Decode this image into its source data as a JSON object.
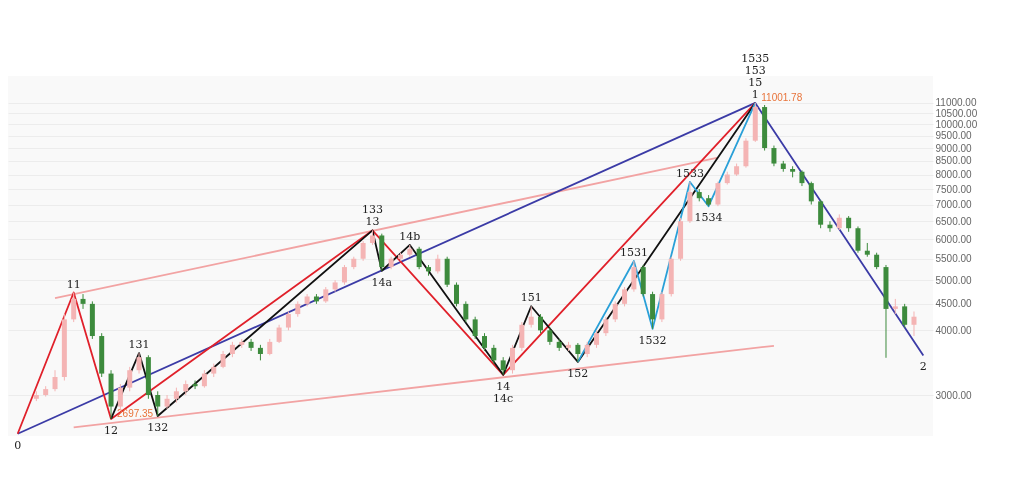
{
  "chart_data": {
    "type": "candlestick",
    "log": true,
    "grid": "y",
    "tick_labels": "y",
    "categories": [
      null,
      null,
      null,
      null,
      null,
      null,
      null,
      null,
      null,
      null,
      null,
      null,
      null,
      null,
      null,
      null,
      null,
      null,
      null,
      null,
      null,
      null,
      null,
      null,
      null,
      null,
      null,
      null,
      null,
      null,
      null,
      null,
      null,
      null,
      null,
      null,
      null,
      null,
      null,
      null,
      null,
      null,
      null,
      null,
      null,
      null,
      null,
      null,
      null,
      null,
      null,
      null,
      null,
      null,
      null,
      null,
      null,
      null,
      null,
      null,
      null,
      null,
      null,
      null,
      null,
      null,
      null,
      null,
      null,
      null,
      null,
      null,
      null,
      null,
      null,
      null,
      null,
      null,
      null,
      null,
      null,
      null,
      null,
      null,
      null,
      null,
      null,
      null,
      null,
      null,
      null,
      null,
      null,
      null,
      null,
      null,
      null,
      null
    ],
    "ylim": [
      2500,
      12400
    ],
    "yticks": [
      {
        "value": 3000,
        "label": "3000.00"
      },
      {
        "value": 4000,
        "label": "4000.00"
      },
      {
        "value": 4500,
        "label": "4500.00"
      },
      {
        "value": 5000,
        "label": "5000.00"
      },
      {
        "value": 5500,
        "label": "5500.00"
      },
      {
        "value": 6000,
        "label": "6000.00"
      },
      {
        "value": 6500,
        "label": "6500.00"
      },
      {
        "value": 7000,
        "label": "7000.00"
      },
      {
        "value": 7500,
        "label": "7500.00"
      },
      {
        "value": 8000,
        "label": "8000.00"
      },
      {
        "value": 8500,
        "label": "8500.00"
      },
      {
        "value": 9000,
        "label": "9000.00"
      },
      {
        "value": 9500,
        "label": "9500.00"
      },
      {
        "value": 10000,
        "label": "10000.00"
      },
      {
        "value": 10500,
        "label": "10500.00"
      },
      {
        "value": 11000,
        "label": "11000.00"
      }
    ],
    "series": [
      {
        "type": "line",
        "color": "#f2a3a3",
        "values": [
          null,
          null,
          null,
          null,
          4615,
          null,
          null,
          null,
          null,
          null,
          null,
          null,
          null,
          null,
          null,
          null,
          null,
          null,
          null,
          null,
          null,
          null,
          null,
          null,
          null,
          null,
          null,
          null,
          null,
          null,
          null,
          null,
          null,
          null,
          null,
          null,
          null,
          null,
          null,
          null,
          null,
          null,
          null,
          null,
          null,
          null,
          null,
          null,
          null,
          null,
          null,
          null,
          null,
          null,
          null,
          null,
          null,
          null,
          null,
          null,
          null,
          null,
          null,
          null,
          null,
          null,
          null,
          null,
          null,
          null,
          null,
          null,
          null,
          null,
          null,
          8620,
          null,
          null,
          null,
          null,
          null,
          null,
          null,
          null,
          null,
          null,
          null,
          null,
          null,
          null,
          null,
          null,
          null,
          null,
          null,
          null,
          null,
          null
        ]
      },
      {
        "type": "line",
        "color": "#f2a3a3",
        "values": [
          null,
          null,
          null,
          null,
          null,
          null,
          2599,
          null,
          null,
          null,
          null,
          null,
          null,
          null,
          null,
          null,
          null,
          null,
          null,
          null,
          null,
          null,
          null,
          null,
          null,
          null,
          null,
          null,
          null,
          null,
          null,
          null,
          null,
          null,
          null,
          null,
          null,
          null,
          null,
          null,
          null,
          null,
          null,
          null,
          null,
          null,
          null,
          null,
          null,
          null,
          null,
          null,
          null,
          null,
          null,
          null,
          null,
          null,
          null,
          null,
          null,
          null,
          null,
          null,
          null,
          null,
          null,
          null,
          null,
          null,
          null,
          null,
          null,
          null,
          null,
          null,
          null,
          null,
          null,
          null,
          null,
          3734,
          null,
          null,
          null,
          null,
          null,
          null,
          null,
          null,
          null,
          null,
          null,
          null,
          null,
          null,
          null,
          null
        ]
      },
      {
        "type": "line",
        "color": "#3b3ba6",
        "values": [
          2525,
          null,
          null,
          null,
          null,
          null,
          null,
          null,
          null,
          null,
          null,
          null,
          null,
          null,
          null,
          null,
          null,
          null,
          null,
          null,
          null,
          null,
          null,
          null,
          null,
          null,
          null,
          null,
          null,
          null,
          null,
          null,
          null,
          null,
          null,
          null,
          null,
          null,
          null,
          null,
          null,
          null,
          null,
          null,
          null,
          null,
          null,
          null,
          null,
          null,
          null,
          null,
          null,
          null,
          null,
          null,
          null,
          null,
          null,
          null,
          null,
          null,
          null,
          null,
          null,
          null,
          null,
          null,
          null,
          null,
          null,
          null,
          null,
          null,
          null,
          null,
          null,
          null,
          null,
          11001.78,
          null,
          null,
          null,
          null,
          null,
          null,
          null,
          null,
          null,
          null,
          null,
          null,
          null,
          null,
          null,
          null,
          null,
          3577
        ]
      },
      {
        "type": "line",
        "color": "#e0202a",
        "value_labels": [
          null,
          null,
          null,
          null,
          null,
          null,
          null,
          null,
          null,
          null,
          "2697.35",
          null,
          null,
          null,
          null,
          null,
          null,
          null,
          null,
          null,
          null,
          null,
          null,
          null,
          null,
          null,
          null,
          null,
          null,
          null,
          null,
          null,
          null,
          null,
          null,
          null,
          null,
          null,
          null,
          null,
          null,
          null,
          null,
          null,
          null,
          null,
          null,
          null,
          null,
          null,
          null,
          null,
          null,
          null,
          null,
          null,
          null,
          null,
          null,
          null,
          null,
          null,
          null,
          null,
          null,
          null,
          null,
          null,
          null,
          null,
          null,
          null,
          null,
          null,
          null,
          null,
          null,
          null,
          null,
          "11001.78",
          null,
          null,
          null,
          null,
          null,
          null,
          null,
          null,
          null,
          null,
          null,
          null,
          null,
          null,
          null,
          null,
          null,
          null
        ],
        "values": [
          2525,
          null,
          null,
          null,
          null,
          null,
          4733,
          null,
          null,
          null,
          2697.35,
          null,
          null,
          null,
          null,
          null,
          null,
          null,
          null,
          null,
          null,
          null,
          null,
          null,
          null,
          null,
          null,
          null,
          null,
          null,
          null,
          null,
          null,
          null,
          null,
          null,
          null,
          null,
          6240,
          null,
          null,
          null,
          null,
          null,
          null,
          null,
          null,
          null,
          null,
          null,
          null,
          null,
          3282,
          null,
          null,
          null,
          null,
          null,
          null,
          null,
          null,
          null,
          null,
          null,
          null,
          null,
          null,
          null,
          null,
          null,
          null,
          null,
          null,
          null,
          null,
          null,
          null,
          null,
          null,
          11001.78,
          null,
          null,
          null,
          null,
          null,
          null,
          null,
          null,
          null,
          null,
          null,
          null,
          null,
          null,
          null,
          null,
          null,
          null
        ]
      },
      {
        "type": "line",
        "color": "#111111",
        "values": [
          null,
          null,
          null,
          null,
          null,
          null,
          null,
          null,
          null,
          null,
          2697.35,
          null,
          null,
          3615,
          null,
          2733,
          null,
          null,
          null,
          null,
          null,
          null,
          null,
          null,
          null,
          null,
          null,
          null,
          null,
          null,
          null,
          null,
          null,
          null,
          null,
          null,
          null,
          null,
          6240,
          5214,
          null,
          null,
          5849,
          null,
          null,
          null,
          null,
          null,
          null,
          null,
          null,
          null,
          3282,
          null,
          null,
          4453,
          null,
          null,
          null,
          null,
          3476,
          null,
          null,
          null,
          null,
          null,
          null,
          null,
          null,
          null,
          null,
          null,
          null,
          null,
          null,
          null,
          null,
          null,
          null,
          11001.78,
          null,
          null,
          null,
          null,
          null,
          null,
          null,
          null,
          null,
          null,
          null,
          null,
          null,
          null,
          null,
          null,
          null,
          null
        ]
      },
      {
        "type": "line",
        "color": "#2aa0d8",
        "values": [
          null,
          null,
          null,
          null,
          null,
          null,
          null,
          null,
          null,
          null,
          null,
          null,
          null,
          null,
          null,
          null,
          null,
          null,
          null,
          null,
          null,
          null,
          null,
          null,
          null,
          null,
          null,
          null,
          null,
          null,
          null,
          null,
          null,
          null,
          null,
          null,
          null,
          null,
          null,
          null,
          null,
          null,
          null,
          null,
          null,
          null,
          null,
          null,
          null,
          null,
          null,
          null,
          null,
          null,
          null,
          null,
          null,
          null,
          null,
          null,
          3476,
          null,
          null,
          null,
          null,
          null,
          5445,
          null,
          4027,
          null,
          null,
          null,
          7740,
          null,
          6948,
          null,
          null,
          null,
          null,
          11001.78,
          null,
          null,
          null,
          null,
          null,
          null,
          null,
          null,
          null,
          null,
          null,
          null,
          null,
          null,
          null,
          null,
          null,
          null
        ]
      },
      {
        "colors": [
          null,
          null,
          "#f4b4b4",
          "#f4b4b4",
          "#f4b4b4",
          "#f4b4b4",
          "#f4b4b4",
          "#3d8b3d",
          "#3d8b3d",
          "#3d8b3d",
          "#3d8b3d",
          "#f4b4b4",
          "#f4b4b4",
          "#f4b4b4",
          "#3d8b3d",
          "#3d8b3d",
          "#f4b4b4",
          "#f4b4b4",
          "#f4b4b4",
          "#3d8b3d",
          "#f4b4b4",
          "#f4b4b4",
          "#f4b4b4",
          "#f4b4b4",
          "#f4b4b4",
          "#3d8b3d",
          "#3d8b3d",
          "#f4b4b4",
          "#f4b4b4",
          "#f4b4b4",
          "#f4b4b4",
          "#f4b4b4",
          "#3d8b3d",
          "#f4b4b4",
          "#f4b4b4",
          "#f4b4b4",
          "#f4b4b4",
          "#f4b4b4",
          "#f4b4b4",
          "#3d8b3d",
          "#f4b4b4",
          "#f4b4b4",
          "#f4b4b4",
          "#3d8b3d",
          "#3d8b3d",
          "#f4b4b4",
          "#3d8b3d",
          "#3d8b3d",
          "#3d8b3d",
          "#3d8b3d",
          "#3d8b3d",
          "#3d8b3d",
          "#3d8b3d",
          "#f4b4b4",
          "#f4b4b4",
          "#f4b4b4",
          "#3d8b3d",
          "#3d8b3d",
          "#3d8b3d",
          "#f4b4b4",
          "#3d8b3d",
          "#f4b4b4",
          "#f4b4b4",
          "#f4b4b4",
          "#f4b4b4",
          "#f4b4b4",
          "#f4b4b4",
          "#3d8b3d",
          "#3d8b3d",
          "#f4b4b4",
          "#f4b4b4",
          "#f4b4b4",
          "#f4b4b4",
          "#3d8b3d",
          "#3d8b3d",
          "#f4b4b4",
          "#f4b4b4",
          "#f4b4b4",
          "#f4b4b4",
          "#f4b4b4",
          "#3d8b3d",
          "#3d8b3d",
          "#3d8b3d",
          "#3d8b3d",
          "#3d8b3d",
          "#3d8b3d",
          "#3d8b3d",
          "#3d8b3d",
          "#f4b4b4",
          "#3d8b3d",
          "#3d8b3d",
          "#3d8b3d",
          "#3d8b3d",
          "#3d8b3d",
          "#f4b4b4",
          "#3d8b3d",
          "#f4b4b4",
          null
        ],
        "ohlc": [
          null,
          null,
          [
            2950,
            3050,
            2920,
            3000
          ],
          [
            3000,
            3120,
            2980,
            3080
          ],
          [
            3080,
            3350,
            3050,
            3250
          ],
          [
            3250,
            4300,
            3200,
            4200
          ],
          [
            4200,
            4733,
            4150,
            4600
          ],
          [
            4600,
            4700,
            4400,
            4500
          ],
          [
            4500,
            4550,
            3850,
            3900
          ],
          [
            3900,
            3950,
            3250,
            3300
          ],
          [
            3300,
            3350,
            2697.35,
            2850
          ],
          [
            2850,
            3150,
            2800,
            3100
          ],
          [
            3100,
            3400,
            3050,
            3350
          ],
          [
            3350,
            3615,
            3300,
            3550
          ],
          [
            3550,
            3580,
            2950,
            3000
          ],
          [
            3000,
            3050,
            2733,
            2850
          ],
          [
            2850,
            3000,
            2820,
            2950
          ],
          [
            2950,
            3100,
            2900,
            3050
          ],
          [
            3050,
            3200,
            3000,
            3150
          ],
          [
            3150,
            3200,
            3080,
            3120
          ],
          [
            3120,
            3350,
            3100,
            3300
          ],
          [
            3300,
            3450,
            3250,
            3400
          ],
          [
            3400,
            3650,
            3380,
            3600
          ],
          [
            3600,
            3800,
            3550,
            3750
          ],
          [
            3750,
            3850,
            3700,
            3800
          ],
          [
            3800,
            3850,
            3650,
            3700
          ],
          [
            3700,
            3750,
            3500,
            3600
          ],
          [
            3600,
            3850,
            3580,
            3800
          ],
          [
            3800,
            4100,
            3780,
            4050
          ],
          [
            4050,
            4350,
            4000,
            4300
          ],
          [
            4300,
            4550,
            4250,
            4500
          ],
          [
            4500,
            4700,
            4450,
            4650
          ],
          [
            4650,
            4700,
            4500,
            4550
          ],
          [
            4550,
            4850,
            4520,
            4800
          ],
          [
            4800,
            5000,
            4750,
            4950
          ],
          [
            4950,
            5350,
            4900,
            5300
          ],
          [
            5300,
            5550,
            5250,
            5500
          ],
          [
            5500,
            5950,
            5450,
            5900
          ],
          [
            5900,
            6240,
            5850,
            6100
          ],
          [
            6100,
            6150,
            5214,
            5300
          ],
          [
            5300,
            5550,
            5250,
            5500
          ],
          [
            5500,
            5650,
            5450,
            5600
          ],
          [
            5600,
            5849,
            5550,
            5750
          ],
          [
            5750,
            5800,
            5250,
            5300
          ],
          [
            5300,
            5350,
            5100,
            5200
          ],
          [
            5200,
            5600,
            5150,
            5500
          ],
          [
            5500,
            5550,
            4850,
            4900
          ],
          [
            4900,
            4950,
            4450,
            4500
          ],
          [
            4500,
            4550,
            4150,
            4200
          ],
          [
            4200,
            4250,
            3850,
            3900
          ],
          [
            3900,
            3950,
            3650,
            3700
          ],
          [
            3700,
            3750,
            3450,
            3500
          ],
          [
            3500,
            3550,
            3282,
            3350
          ],
          [
            3350,
            3750,
            3300,
            3700
          ],
          [
            3700,
            4150,
            3650,
            4100
          ],
          [
            4100,
            4453,
            4050,
            4250
          ],
          [
            4250,
            4300,
            3950,
            4000
          ],
          [
            4000,
            4050,
            3750,
            3800
          ],
          [
            3800,
            3850,
            3650,
            3700
          ],
          [
            3700,
            3800,
            3650,
            3750
          ],
          [
            3750,
            3780,
            3476,
            3600
          ],
          [
            3600,
            3800,
            3550,
            3750
          ],
          [
            3750,
            4000,
            3700,
            3950
          ],
          [
            3950,
            4250,
            3900,
            4200
          ],
          [
            4200,
            4550,
            4150,
            4500
          ],
          [
            4500,
            4850,
            4450,
            4800
          ],
          [
            4800,
            5445,
            4750,
            5300
          ],
          [
            5300,
            5350,
            4650,
            4700
          ],
          [
            4700,
            4750,
            4027,
            4200
          ],
          [
            4200,
            4750,
            4150,
            4700
          ],
          [
            4700,
            5550,
            4650,
            5500
          ],
          [
            5500,
            6600,
            5450,
            6500
          ],
          [
            6500,
            7740,
            6450,
            7400
          ],
          [
            7400,
            7500,
            7100,
            7200
          ],
          [
            7200,
            7300,
            6948,
            7000
          ],
          [
            7000,
            7750,
            6950,
            7700
          ],
          [
            7700,
            8100,
            7650,
            8000
          ],
          [
            8000,
            8400,
            7950,
            8300
          ],
          [
            8300,
            9400,
            8250,
            9300
          ],
          [
            9300,
            11001.78,
            9250,
            10800
          ],
          [
            10800,
            10900,
            8900,
            9000
          ],
          [
            9000,
            9100,
            8300,
            8400
          ],
          [
            8400,
            8500,
            8100,
            8200
          ],
          [
            8200,
            8300,
            7900,
            8100
          ],
          [
            8100,
            8150,
            7600,
            7700
          ],
          [
            7700,
            7750,
            7000,
            7100
          ],
          [
            7100,
            7150,
            6300,
            6400
          ],
          [
            6400,
            6500,
            6200,
            6300
          ],
          [
            6300,
            6700,
            6250,
            6600
          ],
          [
            6600,
            6650,
            6200,
            6300
          ],
          [
            6300,
            6350,
            5650,
            5700
          ],
          [
            5700,
            5900,
            5550,
            5600
          ],
          [
            5600,
            5650,
            5250,
            5300
          ],
          [
            5300,
            5350,
            3540,
            4400
          ],
          [
            4400,
            4600,
            4300,
            4450
          ],
          [
            4450,
            4500,
            4050,
            4100
          ],
          [
            4100,
            4350,
            3900,
            4250
          ],
          null
        ]
      }
    ],
    "annotations": [
      {
        "text": "0",
        "y": 2525
      },
      {
        "text": "11",
        "y": 4733
      },
      {
        "text": "12",
        "y": 2697.35
      },
      {
        "text": "131",
        "y": 3615
      },
      {
        "text": "132",
        "y": 2733
      },
      {
        "text": "133\n13",
        "y": 6240
      },
      {
        "text": "14a",
        "y": 5214
      },
      {
        "text": "14b",
        "y": 5849
      },
      {
        "text": "14\n14c",
        "y": 3282
      },
      {
        "text": "151",
        "y": 4453
      },
      {
        "text": "152",
        "y": 3476
      },
      {
        "text": "1531",
        "y": 5445
      },
      {
        "text": "1532",
        "y": 4027
      },
      {
        "text": "1533",
        "y": 7740
      },
      {
        "text": "1534",
        "y": 6948
      },
      {
        "text": "1535\n153\n15\n1",
        "y": 11001.78
      },
      {
        "text": "2",
        "y": 3577
      }
    ]
  }
}
